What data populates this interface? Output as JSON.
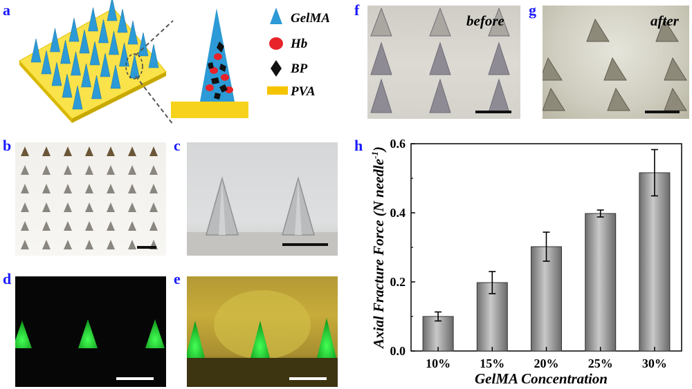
{
  "panels": {
    "a": "a",
    "b": "b",
    "c": "c",
    "d": "d",
    "e": "e",
    "f": "f",
    "g": "g",
    "h": "h"
  },
  "legend": {
    "items": [
      {
        "label": "GelMA",
        "icon": "cone-icon",
        "color": "#2c9ad6"
      },
      {
        "label": "Hb",
        "icon": "red-dot-icon",
        "color": "#e8232a"
      },
      {
        "label": "BP",
        "icon": "black-diamond-icon",
        "color": "#111111"
      },
      {
        "label": "PVA",
        "icon": "yellow-bar-icon",
        "color": "#f5c400"
      }
    ]
  },
  "photos": {
    "f_caption": "before",
    "g_caption": "after"
  },
  "colors": {
    "panel_label": "#1a1aff",
    "gelma": "#2c9ad6",
    "pva": "#f5c400",
    "fluorescence": "#22dd33",
    "bar_gray": "#9a9a9a"
  },
  "chart_data": {
    "type": "bar",
    "categories": [
      "10%",
      "15%",
      "20%",
      "25%",
      "30%"
    ],
    "values": [
      0.1,
      0.198,
      0.302,
      0.398,
      0.516
    ],
    "errors": [
      0.013,
      0.032,
      0.042,
      0.01,
      0.067
    ],
    "xlabel": "GelMA Concentration",
    "ylabel_main": "Axial Fracture Force (N needle",
    "ylabel_sup": "-1",
    "ylabel_close": ")",
    "ylim": [
      0.0,
      0.6
    ],
    "yticks": [
      "0.0",
      "0.2",
      "0.4",
      "0.6"
    ],
    "grid": false
  }
}
